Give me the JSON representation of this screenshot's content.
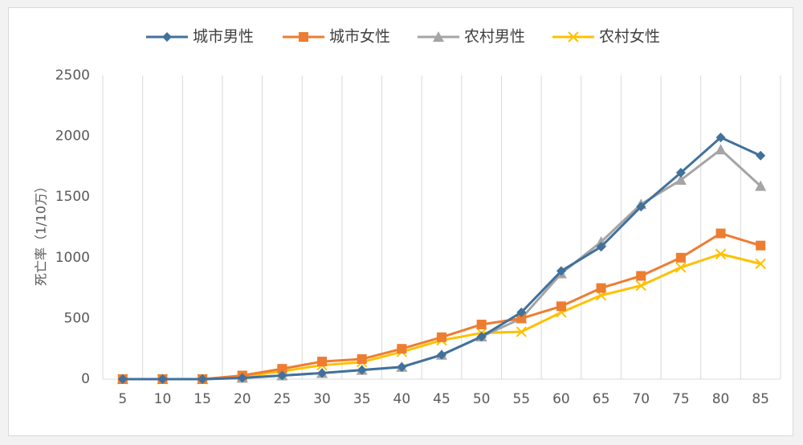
{
  "chart_data": {
    "type": "line",
    "categories": [
      "5",
      "10",
      "15",
      "20",
      "25",
      "30",
      "35",
      "40",
      "45",
      "50",
      "55",
      "60",
      "65",
      "70",
      "75",
      "80",
      "85"
    ],
    "ylabel": "死亡率（1/10万）",
    "xlabel": "",
    "ylim": [
      0,
      2500
    ],
    "yticks": [
      "0",
      "500",
      "1000",
      "1500",
      "2000",
      "2500"
    ],
    "grid": "vertical",
    "legend_position": "top",
    "series": [
      {
        "name": "城市男性",
        "color": "#41719c",
        "marker": "diamond",
        "values": [
          0,
          0,
          0,
          10,
          30,
          50,
          75,
          100,
          200,
          350,
          550,
          890,
          1090,
          1420,
          1700,
          1990,
          1840
        ]
      },
      {
        "name": "城市女性",
        "color": "#ed7d31",
        "marker": "square",
        "values": [
          0,
          0,
          0,
          30,
          85,
          145,
          165,
          250,
          345,
          450,
          500,
          600,
          750,
          850,
          1000,
          1200,
          1100
        ]
      },
      {
        "name": "农村男性",
        "color": "#a5a5a5",
        "marker": "triangle",
        "values": [
          0,
          0,
          0,
          10,
          30,
          50,
          75,
          100,
          200,
          350,
          500,
          870,
          1130,
          1440,
          1640,
          1890,
          1590
        ]
      },
      {
        "name": "农村女性",
        "color": "#ffc000",
        "marker": "x",
        "values": [
          0,
          0,
          0,
          20,
          65,
          115,
          140,
          225,
          320,
          380,
          390,
          550,
          690,
          770,
          920,
          1030,
          950
        ]
      }
    ]
  }
}
